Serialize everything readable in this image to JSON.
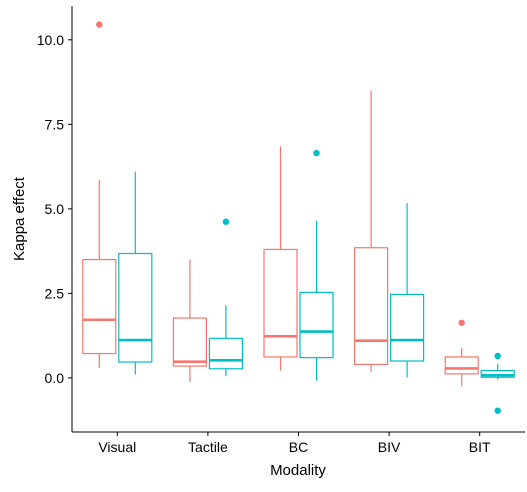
{
  "chart_data": {
    "type": "boxplot",
    "xlabel": "Modality",
    "ylabel": "Kappa effect",
    "categories": [
      "Visual",
      "Tactile",
      "BC",
      "BIV",
      "BIT"
    ],
    "ylim": [
      -1.6,
      11.0
    ],
    "yticks": [
      0.0,
      2.5,
      5.0,
      7.5,
      10.0
    ],
    "ytick_labels": [
      "0.0",
      "2.5",
      "5.0",
      "7.5",
      "10.0"
    ],
    "grid": false,
    "legend": "none",
    "colors": [
      "#F8766D",
      "#00BFC4"
    ],
    "series": [
      {
        "boxes": [
          {
            "whisker_low": 0.3,
            "q1": 0.72,
            "median": 1.72,
            "q3": 3.5,
            "whisker_high": 5.85,
            "outliers": [
              10.45
            ]
          },
          {
            "whisker_low": -0.12,
            "q1": 0.35,
            "median": 0.48,
            "q3": 1.77,
            "whisker_high": 3.5,
            "outliers": []
          },
          {
            "whisker_low": 0.22,
            "q1": 0.62,
            "median": 1.23,
            "q3": 3.8,
            "whisker_high": 6.85,
            "outliers": []
          },
          {
            "whisker_low": 0.18,
            "q1": 0.4,
            "median": 1.1,
            "q3": 3.85,
            "whisker_high": 8.5,
            "outliers": []
          },
          {
            "whisker_low": -0.25,
            "q1": 0.12,
            "median": 0.28,
            "q3": 0.62,
            "whisker_high": 0.88,
            "outliers": [
              1.63
            ]
          }
        ]
      },
      {
        "boxes": [
          {
            "whisker_low": 0.1,
            "q1": 0.47,
            "median": 1.12,
            "q3": 3.68,
            "whisker_high": 6.1,
            "outliers": []
          },
          {
            "whisker_low": 0.05,
            "q1": 0.27,
            "median": 0.52,
            "q3": 1.17,
            "whisker_high": 2.15,
            "outliers": [
              4.62
            ]
          },
          {
            "whisker_low": -0.08,
            "q1": 0.6,
            "median": 1.37,
            "q3": 2.53,
            "whisker_high": 4.65,
            "outliers": [
              6.65
            ]
          },
          {
            "whisker_low": 0.02,
            "q1": 0.5,
            "median": 1.12,
            "q3": 2.47,
            "whisker_high": 5.17,
            "outliers": []
          },
          {
            "whisker_low": -0.05,
            "q1": 0.02,
            "median": 0.08,
            "q3": 0.22,
            "whisker_high": 0.42,
            "outliers": [
              0.65,
              -0.97
            ]
          }
        ]
      }
    ]
  }
}
